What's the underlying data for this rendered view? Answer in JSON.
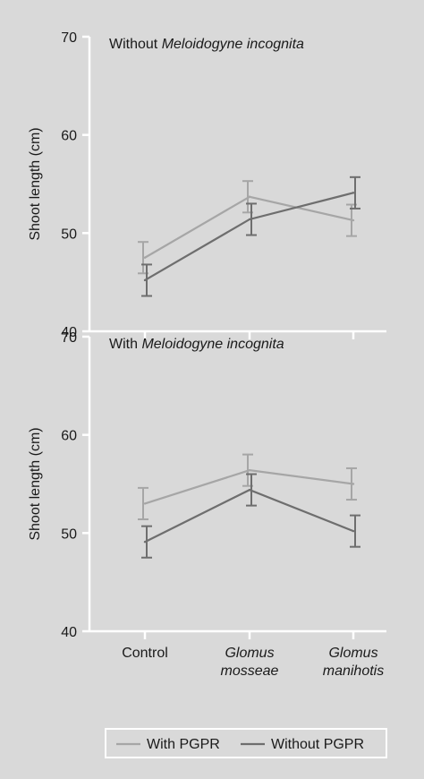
{
  "chart_data": [
    {
      "type": "line",
      "panel_label_prefix": "Without ",
      "panel_label_italic": "Meloidogyne incognita",
      "categories": [
        "Control",
        "Glomus mosseae",
        "Glomus manihotis"
      ],
      "ylabel": "Shoot length (cm)",
      "ylim": [
        40,
        70
      ],
      "yticks": [
        40,
        50,
        60,
        70
      ],
      "grid": false,
      "series": [
        {
          "name": "With PGPR",
          "color": "#a6a6a6",
          "values": [
            47.5,
            53.7,
            51.3
          ],
          "errors": [
            1.6,
            1.6,
            1.6
          ]
        },
        {
          "name": "Without PGPR",
          "color": "#6e6e6e",
          "values": [
            45.2,
            51.4,
            54.1
          ],
          "errors": [
            1.6,
            1.6,
            1.6
          ]
        }
      ]
    },
    {
      "type": "line",
      "panel_label_prefix": "With ",
      "panel_label_italic": "Meloidogyne incognita",
      "categories": [
        "Control",
        "Glomus mosseae",
        "Glomus manihotis"
      ],
      "ylabel": "Shoot length (cm)",
      "ylim": [
        40,
        70
      ],
      "yticks": [
        40,
        50,
        60,
        70
      ],
      "grid": false,
      "series": [
        {
          "name": "With PGPR",
          "color": "#a6a6a6",
          "values": [
            53.0,
            56.4,
            55.0
          ],
          "errors": [
            1.6,
            1.6,
            1.6
          ]
        },
        {
          "name": "Without PGPR",
          "color": "#6e6e6e",
          "values": [
            49.1,
            54.4,
            50.2
          ],
          "errors": [
            1.6,
            1.6,
            1.6
          ]
        }
      ]
    }
  ],
  "x_tick_labels": [
    {
      "lines": [
        "Control"
      ],
      "italic": false
    },
    {
      "lines": [
        "Glomus",
        "mosseae"
      ],
      "italic": true
    },
    {
      "lines": [
        "Glomus",
        "manihotis"
      ],
      "italic": true
    }
  ],
  "legend": {
    "placement": "bottom",
    "items": [
      {
        "label": "With PGPR",
        "color": "#a6a6a6"
      },
      {
        "label": "Without PGPR",
        "color": "#6e6e6e"
      }
    ]
  }
}
